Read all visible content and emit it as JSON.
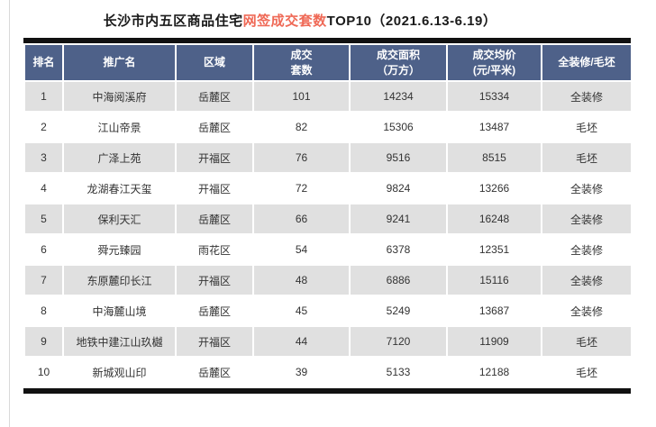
{
  "title": {
    "prefix": "长沙市内五区商品住宅",
    "highlight": "网签成交套数",
    "suffix": "TOP10（2021.6.13-6.19）"
  },
  "table": {
    "headers": [
      "排名",
      "推广名",
      "区域",
      "成交\n套数",
      "成交面积\n（万方）",
      "成交均价\n(元/平米)",
      "全装修/毛坯"
    ],
    "rows": [
      [
        "1",
        "中海阅溪府",
        "岳麓区",
        "101",
        "14234",
        "15334",
        "全装修"
      ],
      [
        "2",
        "江山帝景",
        "岳麓区",
        "82",
        "15306",
        "13487",
        "毛坯"
      ],
      [
        "3",
        "广泽上苑",
        "开福区",
        "76",
        "9516",
        "8515",
        "毛坯"
      ],
      [
        "4",
        "龙湖春江天玺",
        "开福区",
        "72",
        "9824",
        "13266",
        "全装修"
      ],
      [
        "5",
        "保利天汇",
        "岳麓区",
        "66",
        "9241",
        "16248",
        "全装修"
      ],
      [
        "6",
        "舜元臻园",
        "雨花区",
        "54",
        "6378",
        "12351",
        "全装修"
      ],
      [
        "7",
        "东原麓印长江",
        "开福区",
        "48",
        "6886",
        "15116",
        "全装修"
      ],
      [
        "8",
        "中海麓山境",
        "岳麓区",
        "45",
        "5249",
        "13687",
        "全装修"
      ],
      [
        "9",
        "地铁中建江山玖樾",
        "开福区",
        "44",
        "7120",
        "11909",
        "毛坯"
      ],
      [
        "10",
        "新城观山印",
        "岳麓区",
        "39",
        "5133",
        "12188",
        "毛坯"
      ]
    ]
  },
  "colors": {
    "header_bg": "#4e6189",
    "row_alt": "#e0e0e0",
    "top_bottom_bar": "#111111",
    "title_highlight": "#ef6956",
    "body_text": "#333333"
  }
}
